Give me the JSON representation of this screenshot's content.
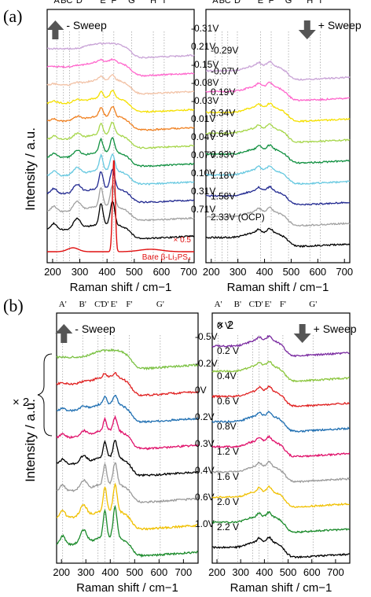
{
  "figure": {
    "panel_a_label": "(a)",
    "panel_b_label": "(b)",
    "ylabel": "Intensity / a.u."
  },
  "chart_data": [
    {
      "type": "line",
      "panel": "a-left",
      "sweep_label": "- Sweep",
      "sweep_direction": "up",
      "xlabel": "Raman shift / cm−1",
      "xlim": [
        180,
        720
      ],
      "xticks": [
        200,
        300,
        400,
        500,
        600,
        700
      ],
      "peak_labels": [
        {
          "label": "A",
          "x": 215
        },
        {
          "label": "B",
          "x": 240
        },
        {
          "label": "C",
          "x": 262
        },
        {
          "label": "D",
          "x": 298
        },
        {
          "label": "E",
          "x": 385
        },
        {
          "label": "F",
          "x": 425
        },
        {
          "label": "G",
          "x": 490
        },
        {
          "label": "H",
          "x": 570
        },
        {
          "label": "I",
          "x": 610
        }
      ],
      "series": [
        {
          "name": "-0.31V",
          "color": "#c8a2d6"
        },
        {
          "name": "0.21V",
          "color": "#ff66cc"
        },
        {
          "name": "-0.15V",
          "color": "#f2c2a6"
        },
        {
          "name": "-0.08V",
          "color": "#f5e000"
        },
        {
          "name": "-0.03V",
          "color": "#f08020"
        },
        {
          "name": "0.01V",
          "color": "#a6d64a"
        },
        {
          "name": "0.04V",
          "color": "#109040"
        },
        {
          "name": "0.07V",
          "color": "#66c8e0"
        },
        {
          "name": "0.10V",
          "color": "#202890"
        },
        {
          "name": "0.31V",
          "color": "#a0a0a0"
        },
        {
          "name": "0.71V",
          "color": "#000000"
        }
      ],
      "reference": {
        "name": "Bare β-Li₃PS₄",
        "color": "#e01010",
        "scale_label": "× 0.5"
      }
    },
    {
      "type": "line",
      "panel": "a-right",
      "sweep_label": "+ Sweep",
      "sweep_direction": "down",
      "xlabel": "Raman shift / cm−1",
      "xlim": [
        180,
        720
      ],
      "xticks": [
        200,
        300,
        400,
        500,
        600,
        700
      ],
      "peak_labels": [
        {
          "label": "A",
          "x": 215
        },
        {
          "label": "B",
          "x": 240
        },
        {
          "label": "C",
          "x": 262
        },
        {
          "label": "D",
          "x": 298
        },
        {
          "label": "E",
          "x": 385
        },
        {
          "label": "F",
          "x": 425
        },
        {
          "label": "G",
          "x": 490
        },
        {
          "label": "H",
          "x": 570
        },
        {
          "label": "I",
          "x": 610
        }
      ],
      "series": [
        {
          "name": "-0.29V",
          "color": "#c8a2d6"
        },
        {
          "name": "-0.07V",
          "color": "#ff66cc"
        },
        {
          "name": "0.19V",
          "color": "#f5e000"
        },
        {
          "name": "0.34V",
          "color": "#a6d64a"
        },
        {
          "name": "0.64V",
          "color": "#109040"
        },
        {
          "name": "0.93V",
          "color": "#66c8e0"
        },
        {
          "name": "1.18V",
          "color": "#202890"
        },
        {
          "name": "1.58V",
          "color": "#a0a0a0"
        },
        {
          "name": "2.33V (OCP)",
          "color": "#000000"
        }
      ]
    },
    {
      "type": "line",
      "panel": "b-left",
      "sweep_label": "- Sweep",
      "sweep_direction": "up",
      "multiplier": "× 2",
      "xlabel": "Raman shift / cm−1",
      "xlim": [
        180,
        760
      ],
      "xticks": [
        200,
        300,
        400,
        500,
        600,
        700
      ],
      "peak_labels": [
        {
          "label": "A'",
          "x": 205
        },
        {
          "label": "B'",
          "x": 287
        },
        {
          "label": "C'",
          "x": 350
        },
        {
          "label": "D'",
          "x": 378
        },
        {
          "label": "E'",
          "x": 415
        },
        {
          "label": "F'",
          "x": 478
        },
        {
          "label": "G'",
          "x": 605
        }
      ],
      "series": [
        {
          "name": "-0.5V",
          "color": "#7ac142"
        },
        {
          "name": "-0.2V",
          "color": "#e02020"
        },
        {
          "name": "0V",
          "color": "#1f6fb2"
        },
        {
          "name": "0.2V",
          "color": "#e0106a"
        },
        {
          "name": "0.3V",
          "color": "#000000"
        },
        {
          "name": "0.4V",
          "color": "#999999"
        },
        {
          "name": "0.6V",
          "color": "#f0c000"
        },
        {
          "name": "1.0V",
          "color": "#1a8a2a"
        }
      ]
    },
    {
      "type": "line",
      "panel": "b-right",
      "sweep_label": "+ Sweep",
      "sweep_direction": "down",
      "multiplier": "× 2",
      "xlabel": "Raman shift / cm−1",
      "xlim": [
        180,
        760
      ],
      "xticks": [
        200,
        300,
        400,
        500,
        600,
        700
      ],
      "peak_labels": [
        {
          "label": "A'",
          "x": 205
        },
        {
          "label": "B'",
          "x": 287
        },
        {
          "label": "C'",
          "x": 350
        },
        {
          "label": "D'",
          "x": 378
        },
        {
          "label": "E'",
          "x": 415
        },
        {
          "label": "F'",
          "x": 478
        },
        {
          "label": "G'",
          "x": 605
        }
      ],
      "series": [
        {
          "name": "0 V",
          "color": "#7a2aa0"
        },
        {
          "name": "0.2 V",
          "color": "#8cc63f"
        },
        {
          "name": "0.4V",
          "color": "#e02020"
        },
        {
          "name": "0.6 V",
          "color": "#1f6fb2"
        },
        {
          "name": "0.8V",
          "color": "#e0106a"
        },
        {
          "name": "1.2 V",
          "color": "#999999"
        },
        {
          "name": "1.6 V",
          "color": "#f0c000"
        },
        {
          "name": "2.0 V",
          "color": "#1a8a2a"
        },
        {
          "name": "2.2 V",
          "color": "#000000"
        }
      ]
    }
  ]
}
